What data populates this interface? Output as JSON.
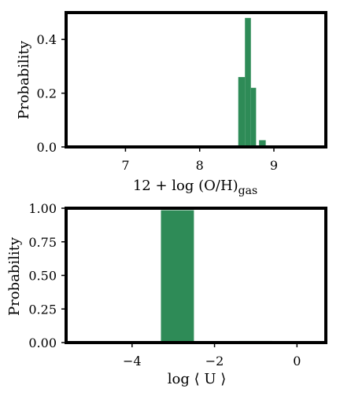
{
  "chart_data": [
    {
      "type": "bar",
      "xlabel_main": "12 + log (O/H)",
      "xlabel_sub": "gas",
      "ylabel": "Probability",
      "xlim": [
        6.2,
        9.7
      ],
      "ylim": [
        0,
        0.5
      ],
      "xticks": [
        7,
        8,
        9
      ],
      "yticks": [
        0.0,
        0.2,
        0.4
      ],
      "ytick_labels": [
        "0.0",
        "0.2",
        "0.4"
      ],
      "bar_color": "#2e8b57",
      "bins": [
        {
          "x0": 8.52,
          "x1": 8.61,
          "value": 0.26
        },
        {
          "x0": 8.61,
          "x1": 8.69,
          "value": 0.48
        },
        {
          "x0": 8.69,
          "x1": 8.76,
          "value": 0.22
        },
        {
          "x0": 8.8,
          "x1": 8.89,
          "value": 0.025
        }
      ],
      "grid": false
    },
    {
      "type": "bar",
      "xlabel": "log ⟨ U ⟩",
      "ylabel": "Probability",
      "xlim": [
        -5.6,
        0.7
      ],
      "ylim": [
        0,
        1.0
      ],
      "xticks": [
        -4,
        -2,
        0
      ],
      "xtick_labels": [
        "−4",
        "−2",
        "0"
      ],
      "yticks": [
        0.0,
        0.25,
        0.5,
        0.75,
        1.0
      ],
      "ytick_labels": [
        "0.00",
        "0.25",
        "0.50",
        "0.75",
        "1.00"
      ],
      "bar_color": "#2e8b57",
      "bins": [
        {
          "x0": -3.3,
          "x1": -2.5,
          "value": 0.985
        },
        {
          "x0": -1.4,
          "x1": -0.6,
          "value": 0.012
        }
      ],
      "grid": false
    }
  ]
}
